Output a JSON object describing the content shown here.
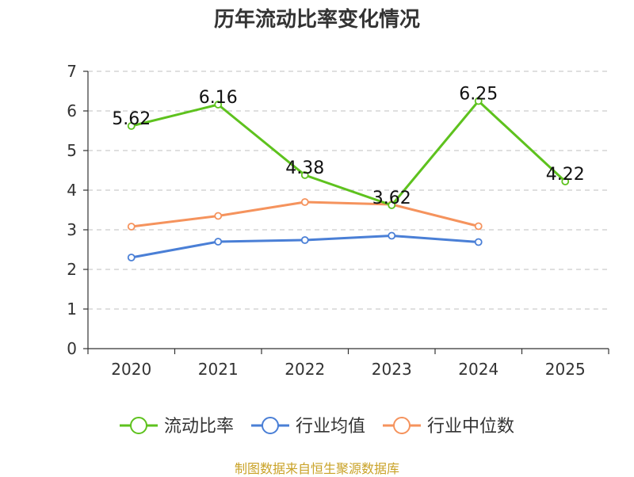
{
  "chart_data": {
    "type": "line",
    "title": "历年流动比率变化情况",
    "categories": [
      "2020",
      "2021",
      "2022",
      "2023",
      "2024",
      "2025"
    ],
    "ylim": [
      0,
      7
    ],
    "yticks": [
      0,
      1,
      2,
      3,
      4,
      5,
      6,
      7
    ],
    "grid": true,
    "legend_position": "bottom",
    "series": [
      {
        "name": "流动比率",
        "color": "#5ec21e",
        "values": [
          5.62,
          6.16,
          4.38,
          3.62,
          6.25,
          4.22
        ],
        "labels": [
          "5.62",
          "6.16",
          "4.38",
          "3.62",
          "6.25",
          "4.22"
        ],
        "show_labels": true
      },
      {
        "name": "行业均值",
        "color": "#4a7fd6",
        "values": [
          2.3,
          2.7,
          2.74,
          2.85,
          2.69,
          null
        ],
        "show_labels": false
      },
      {
        "name": "行业中位数",
        "color": "#f5935d",
        "values": [
          3.08,
          3.35,
          3.7,
          3.64,
          3.09,
          null
        ],
        "show_labels": false
      }
    ]
  },
  "footer": {
    "source": "制图数据来自恒生聚源数据库"
  }
}
